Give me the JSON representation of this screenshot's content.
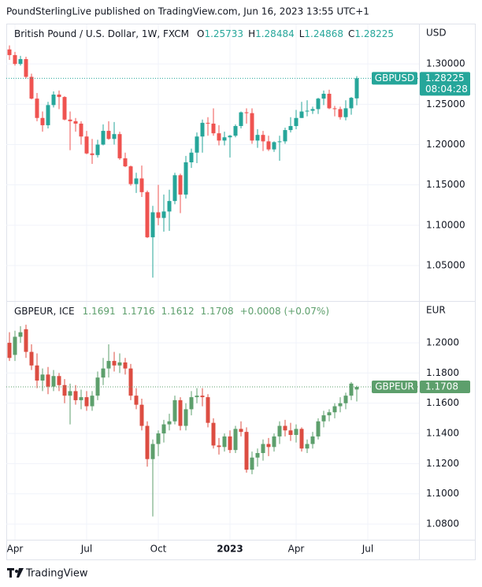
{
  "header": "PoundSterlingLive published on TradingView.com, Jun 16, 2023 13:55 UTC+1",
  "footer": "TradingView",
  "time_axis": {
    "categories": [
      null,
      "Apr",
      null,
      null,
      null,
      null,
      null,
      null,
      null,
      null,
      null,
      null,
      null,
      null,
      "Jul",
      null,
      null,
      null,
      null,
      null,
      null,
      null,
      null,
      null,
      null,
      null,
      null,
      "Oct",
      null,
      null,
      null,
      null,
      null,
      null,
      null,
      null,
      null,
      null,
      null,
      null,
      "2023",
      null,
      null,
      null,
      null,
      null,
      null,
      null,
      null,
      null,
      null,
      null,
      "Apr",
      null,
      null,
      null,
      null,
      null,
      null,
      null,
      null,
      null,
      null,
      null,
      null,
      "Jul"
    ]
  },
  "chart_data": [
    {
      "type": "candlestick",
      "title": "British Pound / U.S. Dollar, 1W, FXCM",
      "ohlc_letters": [
        "O",
        "H",
        "L",
        "C"
      ],
      "symbol": "GBPUSD",
      "currency": "USD",
      "countdown": "08:04:28",
      "up_color": "#26a69a",
      "down_color": "#ef5350",
      "ylim": [
        1.006,
        1.35
      ],
      "yticks": [
        {
          "value": 1.3,
          "label": "1.30000"
        },
        {
          "value": 1.25,
          "label": "1.25000"
        },
        {
          "value": 1.2,
          "label": "1.20000"
        },
        {
          "value": 1.15,
          "label": "1.15000"
        },
        {
          "value": 1.1,
          "label": "1.10000"
        },
        {
          "value": 1.05,
          "label": "1.05000"
        }
      ],
      "open": [
        1.318,
        1.311,
        1.3,
        1.306,
        1.284,
        1.257,
        1.233,
        1.224,
        1.249,
        1.262,
        1.259,
        1.231,
        1.229,
        1.226,
        1.21,
        1.189,
        1.187,
        1.2,
        1.217,
        1.207,
        1.213,
        1.183,
        1.173,
        1.151,
        1.158,
        1.141,
        1.085,
        1.116,
        1.109,
        1.117,
        1.13,
        1.162,
        1.138,
        1.178,
        1.19,
        1.21,
        1.227,
        1.226,
        1.214,
        1.205,
        1.209,
        1.211,
        1.223,
        1.24,
        1.239,
        1.205,
        1.212,
        1.204,
        1.194,
        1.203,
        1.204,
        1.218,
        1.223,
        1.233,
        1.241,
        1.242,
        1.244,
        1.257,
        1.263,
        1.245,
        1.244,
        1.234,
        1.245,
        1.25733,
        null,
        null
      ],
      "high": [
        1.323,
        1.315,
        1.31,
        1.309,
        1.288,
        1.264,
        1.241,
        1.253,
        1.266,
        1.267,
        1.26,
        1.241,
        1.233,
        1.229,
        1.217,
        1.207,
        1.206,
        1.225,
        1.229,
        1.228,
        1.216,
        1.19,
        1.174,
        1.165,
        1.174,
        1.143,
        1.124,
        1.15,
        1.138,
        1.144,
        1.165,
        1.164,
        1.186,
        1.195,
        1.215,
        1.231,
        1.234,
        1.245,
        1.224,
        1.216,
        1.212,
        1.225,
        1.241,
        1.245,
        1.245,
        1.219,
        1.217,
        1.211,
        1.204,
        1.211,
        1.221,
        1.234,
        1.243,
        1.253,
        1.255,
        1.247,
        1.258,
        1.267,
        1.268,
        1.248,
        1.247,
        1.255,
        1.259,
        1.28484,
        null,
        null
      ],
      "low": [
        1.305,
        1.298,
        1.298,
        1.282,
        1.256,
        1.229,
        1.216,
        1.22,
        1.246,
        1.244,
        1.23,
        1.193,
        1.216,
        1.2,
        1.188,
        1.176,
        1.184,
        1.199,
        1.206,
        1.2,
        1.181,
        1.172,
        1.149,
        1.14,
        1.135,
        1.084,
        1.035,
        1.1,
        1.092,
        1.093,
        1.126,
        1.115,
        1.133,
        1.171,
        1.177,
        1.19,
        1.211,
        1.211,
        1.199,
        1.199,
        1.184,
        1.209,
        1.22,
        1.226,
        1.201,
        1.196,
        1.192,
        1.192,
        1.191,
        1.18,
        1.201,
        1.215,
        1.219,
        1.233,
        1.235,
        1.238,
        1.238,
        1.249,
        1.244,
        1.235,
        1.231,
        1.23,
        1.237,
        1.24868,
        null,
        null
      ],
      "close": [
        1.311,
        1.3,
        1.306,
        1.284,
        1.257,
        1.233,
        1.224,
        1.249,
        1.262,
        1.259,
        1.231,
        1.229,
        1.226,
        1.21,
        1.189,
        1.187,
        1.2,
        1.217,
        1.207,
        1.213,
        1.183,
        1.173,
        1.151,
        1.158,
        1.141,
        1.085,
        1.116,
        1.109,
        1.117,
        1.13,
        1.162,
        1.138,
        1.178,
        1.19,
        1.21,
        1.227,
        1.226,
        1.214,
        1.205,
        1.209,
        1.211,
        1.223,
        1.24,
        1.239,
        1.205,
        1.212,
        1.204,
        1.194,
        1.203,
        1.204,
        1.218,
        1.223,
        1.233,
        1.241,
        1.242,
        1.244,
        1.257,
        1.263,
        1.245,
        1.244,
        1.234,
        1.245,
        1.258,
        1.28225,
        null,
        null
      ]
    },
    {
      "type": "candlestick",
      "title": "GBPEUR, ICE",
      "change": "+0.0008 (+0.07%)",
      "symbol": "GBPEUR",
      "currency": "EUR",
      "up_color": "#5d9f6c",
      "down_color": "#dc4d42",
      "ylim": [
        1.0696,
        1.2277
      ],
      "yticks": [
        {
          "value": 1.2,
          "label": "1.2000"
        },
        {
          "value": 1.18,
          "label": "1.1800"
        },
        {
          "value": 1.16,
          "label": "1.1600"
        },
        {
          "value": 1.14,
          "label": "1.1400"
        },
        {
          "value": 1.12,
          "label": "1.1200"
        },
        {
          "value": 1.1,
          "label": "1.1000"
        },
        {
          "value": 1.08,
          "label": "1.0800"
        }
      ],
      "open": [
        1.2,
        1.192,
        1.204,
        1.209,
        1.194,
        1.185,
        1.175,
        1.179,
        1.171,
        1.178,
        1.172,
        1.165,
        1.168,
        1.162,
        1.164,
        1.158,
        1.165,
        1.177,
        1.183,
        1.188,
        1.185,
        1.187,
        1.183,
        1.165,
        1.159,
        1.145,
        1.123,
        1.133,
        1.14,
        1.146,
        1.148,
        1.162,
        1.145,
        1.156,
        1.164,
        1.165,
        1.164,
        1.147,
        1.132,
        1.131,
        1.138,
        1.129,
        1.143,
        1.141,
        1.116,
        1.124,
        1.127,
        1.133,
        1.131,
        1.138,
        1.145,
        1.142,
        1.139,
        1.143,
        1.13,
        1.133,
        1.138,
        1.148,
        1.152,
        1.154,
        1.158,
        1.16,
        1.165,
        1.1691,
        null,
        null
      ],
      "high": [
        1.207,
        1.208,
        1.211,
        1.212,
        1.199,
        1.193,
        1.183,
        1.184,
        1.182,
        1.18,
        1.176,
        1.173,
        1.172,
        1.169,
        1.168,
        1.168,
        1.181,
        1.19,
        1.199,
        1.194,
        1.193,
        1.19,
        1.186,
        1.17,
        1.163,
        1.148,
        1.136,
        1.142,
        1.149,
        1.153,
        1.165,
        1.164,
        1.16,
        1.168,
        1.17,
        1.17,
        1.166,
        1.15,
        1.137,
        1.14,
        1.142,
        1.145,
        1.148,
        1.144,
        1.128,
        1.13,
        1.136,
        1.137,
        1.14,
        1.148,
        1.149,
        1.147,
        1.146,
        1.144,
        1.136,
        1.141,
        1.15,
        1.155,
        1.156,
        1.16,
        1.164,
        1.167,
        1.174,
        1.1716,
        null,
        null
      ],
      "low": [
        1.188,
        1.188,
        1.2,
        1.19,
        1.182,
        1.17,
        1.168,
        1.166,
        1.168,
        1.168,
        1.16,
        1.146,
        1.159,
        1.156,
        1.155,
        1.155,
        1.162,
        1.172,
        1.177,
        1.181,
        1.18,
        1.179,
        1.162,
        1.156,
        1.142,
        1.118,
        1.085,
        1.125,
        1.134,
        1.142,
        1.146,
        1.142,
        1.142,
        1.152,
        1.16,
        1.158,
        1.144,
        1.13,
        1.126,
        1.128,
        1.127,
        1.127,
        1.138,
        1.114,
        1.113,
        1.118,
        1.122,
        1.125,
        1.128,
        1.133,
        1.138,
        1.135,
        1.134,
        1.128,
        1.127,
        1.13,
        1.136,
        1.144,
        1.148,
        1.15,
        1.154,
        1.156,
        1.162,
        1.1612,
        null,
        null
      ],
      "close": [
        1.19,
        1.204,
        1.207,
        1.194,
        1.185,
        1.175,
        1.179,
        1.171,
        1.178,
        1.172,
        1.165,
        1.168,
        1.162,
        1.164,
        1.158,
        1.165,
        1.177,
        1.183,
        1.188,
        1.185,
        1.187,
        1.183,
        1.165,
        1.159,
        1.145,
        1.123,
        1.133,
        1.14,
        1.146,
        1.148,
        1.162,
        1.145,
        1.156,
        1.164,
        1.165,
        1.164,
        1.147,
        1.132,
        1.131,
        1.138,
        1.129,
        1.143,
        1.141,
        1.116,
        1.124,
        1.127,
        1.133,
        1.131,
        1.138,
        1.145,
        1.142,
        1.139,
        1.143,
        1.13,
        1.133,
        1.138,
        1.148,
        1.152,
        1.154,
        1.158,
        1.16,
        1.165,
        1.173,
        1.1708,
        null,
        null
      ]
    }
  ]
}
